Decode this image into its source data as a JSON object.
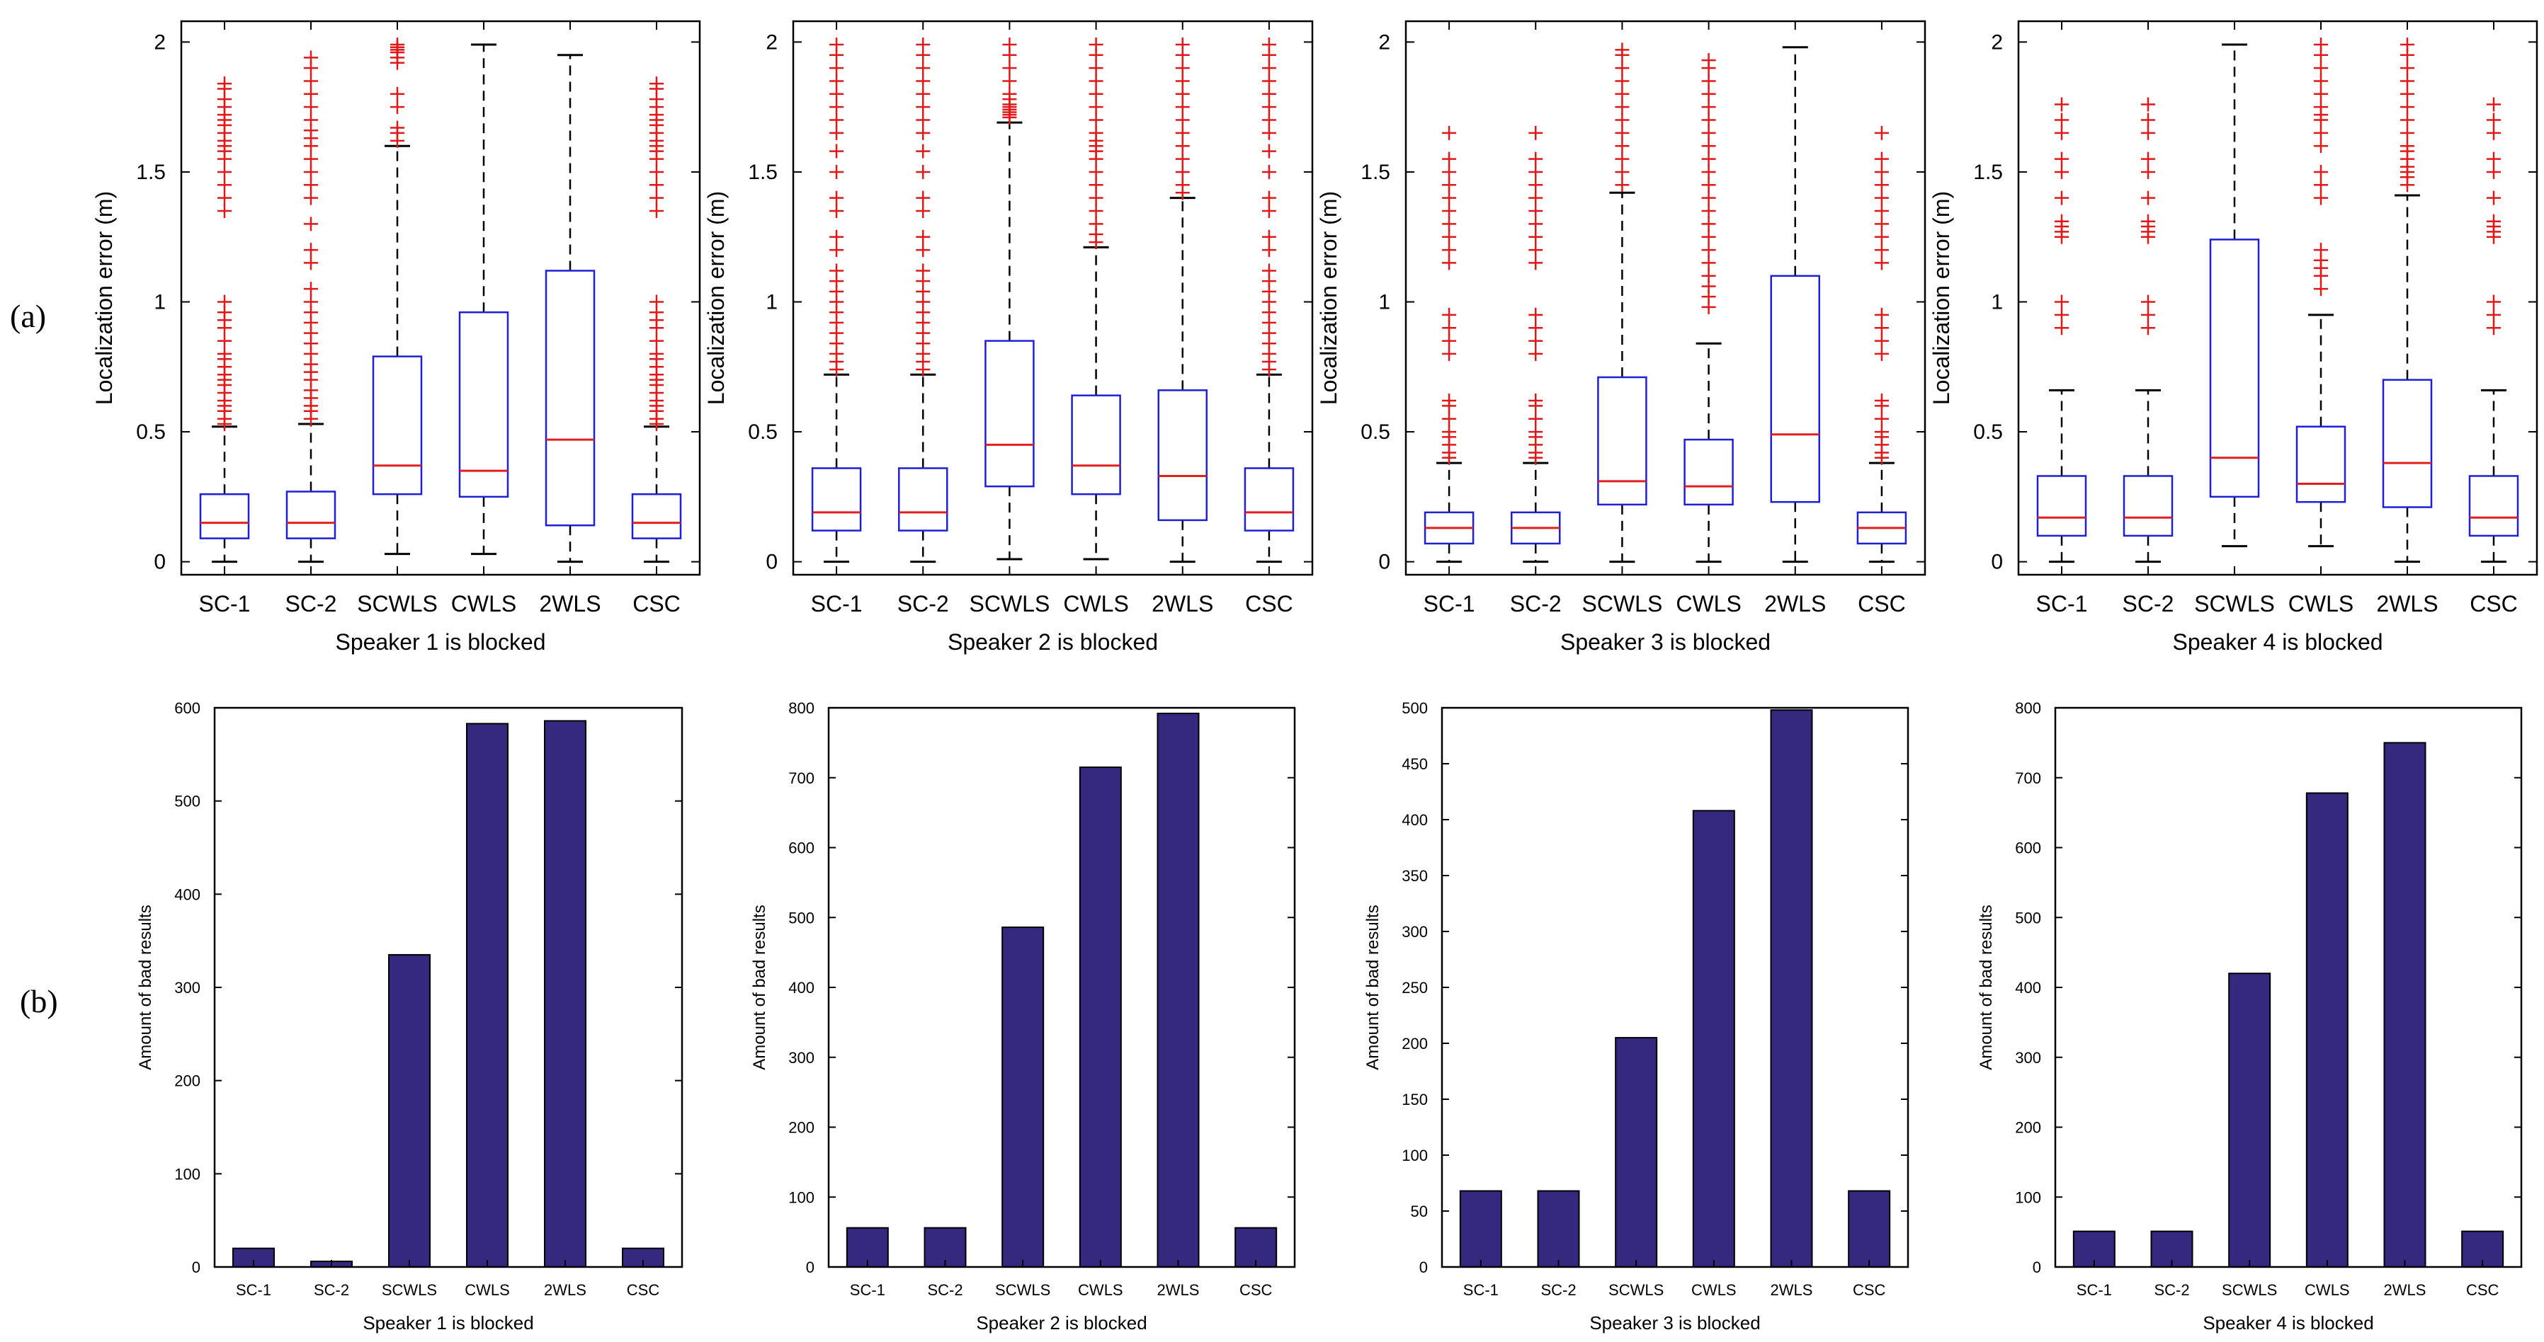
{
  "row_labels": {
    "a": "(a)",
    "b": "(b)"
  },
  "colors": {
    "box": "#1f1fd6",
    "median": "#e0201f",
    "outlier": "#e01818",
    "whisker": "#000000",
    "bar": "#35297f",
    "axis": "#000000"
  },
  "chart_data": [
    {
      "type": "box",
      "id": "box1",
      "title": "",
      "xlabel": "Speaker 1 is blocked",
      "ylabel": "Localization error (m)",
      "ylim": [
        -0.05,
        2.08
      ],
      "yticks": [
        0,
        0.5,
        1,
        1.5,
        2
      ],
      "yticklabels": [
        "0",
        "0.5",
        "1",
        "1.5",
        "2"
      ],
      "categories": [
        "SC-1",
        "SC-2",
        "SCWLS",
        "CWLS",
        "2WLS",
        "CSC"
      ],
      "boxes": [
        {
          "min": 0.0,
          "q1": 0.09,
          "median": 0.15,
          "q3": 0.26,
          "max": 0.52,
          "outliers": [
            0.53,
            0.55,
            0.58,
            0.6,
            0.62,
            0.65,
            0.68,
            0.7,
            0.72,
            0.75,
            0.78,
            0.8,
            0.85,
            0.9,
            0.93,
            0.96,
            1.0,
            1.35,
            1.4,
            1.45,
            1.5,
            1.55,
            1.58,
            1.6,
            1.62,
            1.65,
            1.68,
            1.7,
            1.72,
            1.75,
            1.78,
            1.82,
            1.84
          ]
        },
        {
          "min": 0.0,
          "q1": 0.09,
          "median": 0.15,
          "q3": 0.27,
          "max": 0.53,
          "outliers": [
            0.55,
            0.58,
            0.6,
            0.63,
            0.66,
            0.7,
            0.73,
            0.76,
            0.8,
            0.84,
            0.88,
            0.92,
            0.96,
            1.0,
            1.05,
            1.15,
            1.2,
            1.3,
            1.4,
            1.45,
            1.5,
            1.55,
            1.6,
            1.63,
            1.66,
            1.7,
            1.75,
            1.8,
            1.85,
            1.9,
            1.94
          ]
        },
        {
          "min": 0.03,
          "q1": 0.26,
          "median": 0.37,
          "q3": 0.79,
          "max": 1.6,
          "outliers": [
            1.62,
            1.65,
            1.67,
            1.75,
            1.8,
            1.92,
            1.94,
            1.96,
            1.97,
            1.98,
            1.99
          ]
        },
        {
          "min": 0.03,
          "q1": 0.25,
          "median": 0.35,
          "q3": 0.96,
          "max": 1.99,
          "outliers": []
        },
        {
          "min": 0.0,
          "q1": 0.14,
          "median": 0.47,
          "q3": 1.12,
          "max": 1.95,
          "outliers": []
        },
        {
          "min": 0.0,
          "q1": 0.09,
          "median": 0.15,
          "q3": 0.26,
          "max": 0.52,
          "outliers": [
            0.53,
            0.55,
            0.58,
            0.6,
            0.62,
            0.65,
            0.68,
            0.7,
            0.72,
            0.75,
            0.78,
            0.8,
            0.85,
            0.9,
            0.93,
            0.96,
            1.0,
            1.35,
            1.4,
            1.45,
            1.5,
            1.55,
            1.58,
            1.6,
            1.62,
            1.65,
            1.68,
            1.7,
            1.72,
            1.75,
            1.78,
            1.82,
            1.84
          ]
        }
      ]
    },
    {
      "type": "box",
      "id": "box2",
      "title": "",
      "xlabel": "Speaker 2 is blocked",
      "ylabel": "Localization error (m)",
      "ylim": [
        -0.05,
        2.08
      ],
      "yticks": [
        0,
        0.5,
        1,
        1.5,
        2
      ],
      "yticklabels": [
        "0",
        "0.5",
        "1",
        "1.5",
        "2"
      ],
      "categories": [
        "SC-1",
        "SC-2",
        "SCWLS",
        "CWLS",
        "2WLS",
        "CSC"
      ],
      "boxes": [
        {
          "min": 0.0,
          "q1": 0.12,
          "median": 0.19,
          "q3": 0.36,
          "max": 0.72,
          "outliers": [
            0.74,
            0.77,
            0.8,
            0.84,
            0.88,
            0.92,
            0.96,
            1.0,
            1.04,
            1.08,
            1.12,
            1.2,
            1.25,
            1.35,
            1.4,
            1.5,
            1.58,
            1.65,
            1.7,
            1.75,
            1.8,
            1.85,
            1.9,
            1.95,
            1.99
          ]
        },
        {
          "min": 0.0,
          "q1": 0.12,
          "median": 0.19,
          "q3": 0.36,
          "max": 0.72,
          "outliers": [
            0.74,
            0.77,
            0.8,
            0.84,
            0.88,
            0.92,
            0.96,
            1.0,
            1.04,
            1.08,
            1.12,
            1.2,
            1.25,
            1.35,
            1.4,
            1.5,
            1.58,
            1.65,
            1.7,
            1.75,
            1.8,
            1.85,
            1.9,
            1.95,
            1.99
          ]
        },
        {
          "min": 0.01,
          "q1": 0.29,
          "median": 0.45,
          "q3": 0.85,
          "max": 1.69,
          "outliers": [
            1.71,
            1.72,
            1.73,
            1.74,
            1.75,
            1.76,
            1.78,
            1.8,
            1.85,
            1.9,
            1.95,
            1.99
          ]
        },
        {
          "min": 0.01,
          "q1": 0.26,
          "median": 0.37,
          "q3": 0.64,
          "max": 1.21,
          "outliers": [
            1.23,
            1.26,
            1.3,
            1.35,
            1.4,
            1.45,
            1.5,
            1.55,
            1.58,
            1.6,
            1.62,
            1.65,
            1.7,
            1.75,
            1.8,
            1.85,
            1.9,
            1.95,
            1.99
          ]
        },
        {
          "min": 0.0,
          "q1": 0.16,
          "median": 0.33,
          "q3": 0.66,
          "max": 1.4,
          "outliers": [
            1.42,
            1.45,
            1.5,
            1.55,
            1.6,
            1.65,
            1.7,
            1.75,
            1.8,
            1.85,
            1.9,
            1.95,
            1.99
          ]
        },
        {
          "min": 0.0,
          "q1": 0.12,
          "median": 0.19,
          "q3": 0.36,
          "max": 0.72,
          "outliers": [
            0.74,
            0.77,
            0.8,
            0.84,
            0.88,
            0.92,
            0.96,
            1.0,
            1.04,
            1.08,
            1.12,
            1.2,
            1.25,
            1.35,
            1.4,
            1.5,
            1.58,
            1.65,
            1.7,
            1.75,
            1.8,
            1.85,
            1.9,
            1.95,
            1.99
          ]
        }
      ]
    },
    {
      "type": "box",
      "id": "box3",
      "title": "",
      "xlabel": "Speaker 3 is blocked",
      "ylabel": "Localization error (m)",
      "ylim": [
        -0.05,
        2.08
      ],
      "yticks": [
        0,
        0.5,
        1,
        1.5,
        2
      ],
      "yticklabels": [
        "0",
        "0.5",
        "1",
        "1.5",
        "2"
      ],
      "categories": [
        "SC-1",
        "SC-2",
        "SCWLS",
        "CWLS",
        "2WLS",
        "CSC"
      ],
      "boxes": [
        {
          "min": 0.0,
          "q1": 0.07,
          "median": 0.13,
          "q3": 0.19,
          "max": 0.38,
          "outliers": [
            0.4,
            0.42,
            0.45,
            0.48,
            0.5,
            0.55,
            0.6,
            0.62,
            0.8,
            0.85,
            0.9,
            0.95,
            1.15,
            1.2,
            1.25,
            1.3,
            1.35,
            1.4,
            1.45,
            1.5,
            1.55,
            1.65
          ]
        },
        {
          "min": 0.0,
          "q1": 0.07,
          "median": 0.13,
          "q3": 0.19,
          "max": 0.38,
          "outliers": [
            0.4,
            0.42,
            0.45,
            0.48,
            0.5,
            0.55,
            0.6,
            0.62,
            0.8,
            0.85,
            0.9,
            0.95,
            1.15,
            1.2,
            1.25,
            1.3,
            1.35,
            1.4,
            1.45,
            1.5,
            1.55,
            1.65
          ]
        },
        {
          "min": 0.0,
          "q1": 0.22,
          "median": 0.31,
          "q3": 0.71,
          "max": 1.42,
          "outliers": [
            1.45,
            1.5,
            1.55,
            1.6,
            1.65,
            1.7,
            1.75,
            1.8,
            1.85,
            1.9,
            1.95,
            1.97
          ]
        },
        {
          "min": 0.0,
          "q1": 0.22,
          "median": 0.29,
          "q3": 0.47,
          "max": 0.84,
          "outliers": [
            0.98,
            1.02,
            1.06,
            1.1,
            1.15,
            1.2,
            1.25,
            1.3,
            1.35,
            1.4,
            1.45,
            1.5,
            1.55,
            1.6,
            1.65,
            1.7,
            1.75,
            1.8,
            1.85,
            1.9,
            1.93
          ]
        },
        {
          "min": 0.0,
          "q1": 0.23,
          "median": 0.49,
          "q3": 1.1,
          "max": 1.98,
          "outliers": []
        },
        {
          "min": 0.0,
          "q1": 0.07,
          "median": 0.13,
          "q3": 0.19,
          "max": 0.38,
          "outliers": [
            0.4,
            0.42,
            0.45,
            0.48,
            0.5,
            0.55,
            0.6,
            0.62,
            0.8,
            0.85,
            0.9,
            0.95,
            1.15,
            1.2,
            1.25,
            1.3,
            1.35,
            1.4,
            1.45,
            1.5,
            1.55,
            1.65
          ]
        }
      ]
    },
    {
      "type": "box",
      "id": "box4",
      "title": "",
      "xlabel": "Speaker 4 is blocked",
      "ylabel": "Localization error (m)",
      "ylim": [
        -0.05,
        2.08
      ],
      "yticks": [
        0,
        0.5,
        1,
        1.5,
        2
      ],
      "yticklabels": [
        "0",
        "0.5",
        "1",
        "1.5",
        "2"
      ],
      "categories": [
        "SC-1",
        "SC-2",
        "SCWLS",
        "CWLS",
        "2WLS",
        "CSC"
      ],
      "boxes": [
        {
          "min": 0.0,
          "q1": 0.1,
          "median": 0.17,
          "q3": 0.33,
          "max": 0.66,
          "outliers": [
            0.9,
            0.95,
            1.0,
            1.25,
            1.27,
            1.29,
            1.31,
            1.4,
            1.5,
            1.55,
            1.65,
            1.7,
            1.76
          ]
        },
        {
          "min": 0.0,
          "q1": 0.1,
          "median": 0.17,
          "q3": 0.33,
          "max": 0.66,
          "outliers": [
            0.9,
            0.95,
            1.0,
            1.25,
            1.27,
            1.29,
            1.31,
            1.4,
            1.5,
            1.55,
            1.65,
            1.7,
            1.76
          ]
        },
        {
          "min": 0.06,
          "q1": 0.25,
          "median": 0.4,
          "q3": 1.24,
          "max": 1.99,
          "outliers": []
        },
        {
          "min": 0.06,
          "q1": 0.23,
          "median": 0.3,
          "q3": 0.52,
          "max": 0.95,
          "outliers": [
            1.05,
            1.1,
            1.13,
            1.16,
            1.2,
            1.4,
            1.45,
            1.5,
            1.6,
            1.65,
            1.7,
            1.72,
            1.75,
            1.8,
            1.85,
            1.9,
            1.95,
            1.99
          ]
        },
        {
          "min": 0.0,
          "q1": 0.21,
          "median": 0.38,
          "q3": 0.7,
          "max": 1.41,
          "outliers": [
            1.45,
            1.48,
            1.5,
            1.52,
            1.55,
            1.58,
            1.6,
            1.65,
            1.7,
            1.75,
            1.8,
            1.85,
            1.9,
            1.95,
            1.99
          ]
        },
        {
          "min": 0.0,
          "q1": 0.1,
          "median": 0.17,
          "q3": 0.33,
          "max": 0.66,
          "outliers": [
            0.9,
            0.95,
            1.0,
            1.25,
            1.27,
            1.29,
            1.31,
            1.4,
            1.5,
            1.55,
            1.65,
            1.7,
            1.76
          ]
        }
      ]
    },
    {
      "type": "bar",
      "id": "bar1",
      "title": "",
      "xlabel": "Speaker 1 is blocked",
      "ylabel": "Amount of bad results",
      "ylim": [
        0,
        600
      ],
      "yticks": [
        0,
        100,
        200,
        300,
        400,
        500,
        600
      ],
      "yticklabels": [
        "0",
        "100",
        "200",
        "300",
        "400",
        "500",
        "600"
      ],
      "categories": [
        "SC-1",
        "SC-2",
        "SCWLS",
        "CWLS",
        "2WLS",
        "CSC"
      ],
      "values": [
        20,
        6,
        335,
        583,
        586,
        20
      ]
    },
    {
      "type": "bar",
      "id": "bar2",
      "title": "",
      "xlabel": "Speaker 2 is blocked",
      "ylabel": "Amount of bad results",
      "ylim": [
        0,
        800
      ],
      "yticks": [
        0,
        100,
        200,
        300,
        400,
        500,
        600,
        700,
        800
      ],
      "yticklabels": [
        "0",
        "100",
        "200",
        "300",
        "400",
        "500",
        "600",
        "700",
        "800"
      ],
      "categories": [
        "SC-1",
        "SC-2",
        "SCWLS",
        "CWLS",
        "2WLS",
        "CSC"
      ],
      "values": [
        56,
        56,
        486,
        715,
        792,
        56
      ]
    },
    {
      "type": "bar",
      "id": "bar3",
      "title": "",
      "xlabel": "Speaker 3 is blocked",
      "ylabel": "Amount of bad results",
      "ylim": [
        0,
        500
      ],
      "yticks": [
        0,
        50,
        100,
        150,
        200,
        250,
        300,
        350,
        400,
        450,
        500
      ],
      "yticklabels": [
        "0",
        "50",
        "100",
        "150",
        "200",
        "250",
        "300",
        "350",
        "400",
        "450",
        "500"
      ],
      "categories": [
        "SC-1",
        "SC-2",
        "SCWLS",
        "CWLS",
        "2WLS",
        "CSC"
      ],
      "values": [
        68,
        68,
        205,
        408,
        498,
        68
      ]
    },
    {
      "type": "bar",
      "id": "bar4",
      "title": "",
      "xlabel": "Speaker 4 is blocked",
      "ylabel": "Amount of bad results",
      "ylim": [
        0,
        800
      ],
      "yticks": [
        0,
        100,
        200,
        300,
        400,
        500,
        600,
        700,
        800
      ],
      "yticklabels": [
        "0",
        "100",
        "200",
        "300",
        "400",
        "500",
        "600",
        "700",
        "800"
      ],
      "categories": [
        "SC-1",
        "SC-2",
        "SCWLS",
        "CWLS",
        "2WLS",
        "CSC"
      ],
      "values": [
        51,
        51,
        420,
        678,
        750,
        51
      ]
    }
  ]
}
